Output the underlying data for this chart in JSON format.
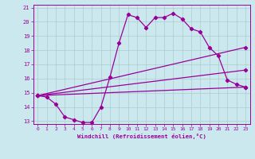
{
  "title": "",
  "xlabel": "Windchill (Refroidissement éolien,°C)",
  "ylabel": "",
  "bg_color": "#cce8ef",
  "grid_color": "#aacccc",
  "line_color": "#990099",
  "xlim": [
    -0.5,
    23.5
  ],
  "ylim": [
    12.8,
    21.2
  ],
  "xticks": [
    0,
    1,
    2,
    3,
    4,
    5,
    6,
    7,
    8,
    9,
    10,
    11,
    12,
    13,
    14,
    15,
    16,
    17,
    18,
    19,
    20,
    21,
    22,
    23
  ],
  "yticks": [
    13,
    14,
    15,
    16,
    17,
    18,
    19,
    20,
    21
  ],
  "line1_x": [
    0,
    1,
    2,
    3,
    4,
    5,
    6,
    7,
    8,
    9,
    10,
    11,
    12,
    13,
    14,
    15,
    16,
    17,
    18,
    19,
    20,
    21,
    22,
    23
  ],
  "line1_y": [
    14.8,
    14.7,
    14.2,
    13.3,
    13.1,
    12.9,
    12.9,
    14.0,
    16.1,
    18.5,
    20.5,
    20.3,
    19.6,
    20.3,
    20.3,
    20.6,
    20.2,
    19.5,
    19.3,
    18.2,
    17.6,
    15.9,
    15.6,
    15.4
  ],
  "line2_x": [
    0,
    23
  ],
  "line2_y": [
    14.8,
    15.4
  ],
  "line3_x": [
    0,
    23
  ],
  "line3_y": [
    14.8,
    16.6
  ],
  "line4_x": [
    0,
    23
  ],
  "line4_y": [
    14.8,
    18.2
  ],
  "marker": "D",
  "markersize": 2.2,
  "linewidth": 0.9
}
